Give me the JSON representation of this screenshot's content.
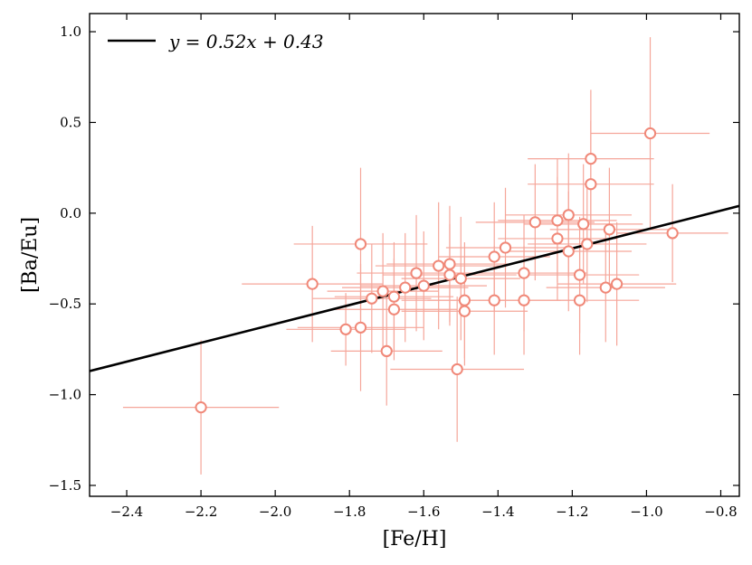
{
  "chart_data": {
    "type": "scatter",
    "xlabel": "[Fe/H]",
    "ylabel": "[Ba/Eu]",
    "xlim": [
      -2.5,
      -0.75
    ],
    "ylim": [
      -1.56,
      1.1
    ],
    "xticks": [
      -2.4,
      -2.2,
      -2.0,
      -1.8,
      -1.6,
      -1.4,
      -1.2,
      -1.0,
      -0.8
    ],
    "xtick_labels": [
      "−2.4",
      "−2.2",
      "−2.0",
      "−1.8",
      "−1.6",
      "−1.4",
      "−1.2",
      "−1.0",
      "−0.8"
    ],
    "yticks": [
      -1.5,
      -1.0,
      -0.5,
      0.0,
      0.5,
      1.0
    ],
    "ytick_labels": [
      "−1.5",
      "−1.0",
      "−0.5",
      "0.0",
      "0.5",
      "1.0"
    ],
    "legend": {
      "label": "y = 0.52x + 0.43",
      "placement": "top-left"
    },
    "fit_line": {
      "slope": 0.52,
      "intercept": 0.43,
      "color": "#000000"
    },
    "marker_color": "#f08878",
    "errorbar_color": "#f5a69a",
    "grid": false,
    "series": [
      {
        "points": [
          {
            "x": -2.2,
            "y": -1.07,
            "xerr": 0.21,
            "yerr": 0.37
          },
          {
            "x": -1.9,
            "y": -0.39,
            "xerr": 0.19,
            "yerr": 0.32
          },
          {
            "x": -1.81,
            "y": -0.64,
            "xerr": 0.16,
            "yerr": 0.2
          },
          {
            "x": -1.77,
            "y": -0.17,
            "xerr": 0.18,
            "yerr": 0.42
          },
          {
            "x": -1.77,
            "y": -0.63,
            "xerr": 0.17,
            "yerr": 0.35
          },
          {
            "x": -1.74,
            "y": -0.47,
            "xerr": 0.16,
            "yerr": 0.3
          },
          {
            "x": -1.71,
            "y": -0.43,
            "xerr": 0.15,
            "yerr": 0.32
          },
          {
            "x": -1.7,
            "y": -0.76,
            "xerr": 0.15,
            "yerr": 0.3
          },
          {
            "x": -1.68,
            "y": -0.53,
            "xerr": 0.17,
            "yerr": 0.28
          },
          {
            "x": -1.68,
            "y": -0.46,
            "xerr": 0.16,
            "yerr": 0.3
          },
          {
            "x": -1.65,
            "y": -0.41,
            "xerr": 0.17,
            "yerr": 0.3
          },
          {
            "x": -1.62,
            "y": -0.33,
            "xerr": 0.16,
            "yerr": 0.32
          },
          {
            "x": -1.6,
            "y": -0.4,
            "xerr": 0.17,
            "yerr": 0.3
          },
          {
            "x": -1.56,
            "y": -0.29,
            "xerr": 0.17,
            "yerr": 0.35
          },
          {
            "x": -1.53,
            "y": -0.28,
            "xerr": 0.17,
            "yerr": 0.32
          },
          {
            "x": -1.53,
            "y": -0.34,
            "xerr": 0.18,
            "yerr": 0.28
          },
          {
            "x": -1.51,
            "y": -0.86,
            "xerr": 0.18,
            "yerr": 0.4
          },
          {
            "x": -1.5,
            "y": -0.36,
            "xerr": 0.16,
            "yerr": 0.34
          },
          {
            "x": -1.49,
            "y": -0.48,
            "xerr": 0.17,
            "yerr": 0.32
          },
          {
            "x": -1.49,
            "y": -0.54,
            "xerr": 0.17,
            "yerr": 0.3
          },
          {
            "x": -1.41,
            "y": -0.24,
            "xerr": 0.15,
            "yerr": 0.3
          },
          {
            "x": -1.41,
            "y": -0.48,
            "xerr": 0.18,
            "yerr": 0.3
          },
          {
            "x": -1.38,
            "y": -0.19,
            "xerr": 0.16,
            "yerr": 0.33
          },
          {
            "x": -1.33,
            "y": -0.33,
            "xerr": 0.17,
            "yerr": 0.32
          },
          {
            "x": -1.33,
            "y": -0.48,
            "xerr": 0.16,
            "yerr": 0.3
          },
          {
            "x": -1.3,
            "y": -0.05,
            "xerr": 0.16,
            "yerr": 0.32
          },
          {
            "x": -1.24,
            "y": -0.04,
            "xerr": 0.16,
            "yerr": 0.34
          },
          {
            "x": -1.24,
            "y": -0.14,
            "xerr": 0.16,
            "yerr": 0.34
          },
          {
            "x": -1.21,
            "y": -0.01,
            "xerr": 0.17,
            "yerr": 0.34
          },
          {
            "x": -1.21,
            "y": -0.21,
            "xerr": 0.17,
            "yerr": 0.33
          },
          {
            "x": -1.18,
            "y": -0.34,
            "xerr": 0.16,
            "yerr": 0.32
          },
          {
            "x": -1.18,
            "y": -0.48,
            "xerr": 0.16,
            "yerr": 0.3
          },
          {
            "x": -1.17,
            "y": -0.06,
            "xerr": 0.16,
            "yerr": 0.33
          },
          {
            "x": -1.16,
            "y": -0.17,
            "xerr": 0.16,
            "yerr": 0.32
          },
          {
            "x": -1.15,
            "y": 0.3,
            "xerr": 0.17,
            "yerr": 0.38
          },
          {
            "x": -1.15,
            "y": 0.16,
            "xerr": 0.17,
            "yerr": 0.35
          },
          {
            "x": -1.11,
            "y": -0.41,
            "xerr": 0.16,
            "yerr": 0.3
          },
          {
            "x": -1.1,
            "y": -0.09,
            "xerr": 0.16,
            "yerr": 0.34
          },
          {
            "x": -1.08,
            "y": -0.39,
            "xerr": 0.16,
            "yerr": 0.34
          },
          {
            "x": -0.99,
            "y": 0.44,
            "xerr": 0.16,
            "yerr": 0.53
          },
          {
            "x": -0.93,
            "y": -0.11,
            "xerr": 0.15,
            "yerr": 0.27
          }
        ]
      }
    ]
  }
}
